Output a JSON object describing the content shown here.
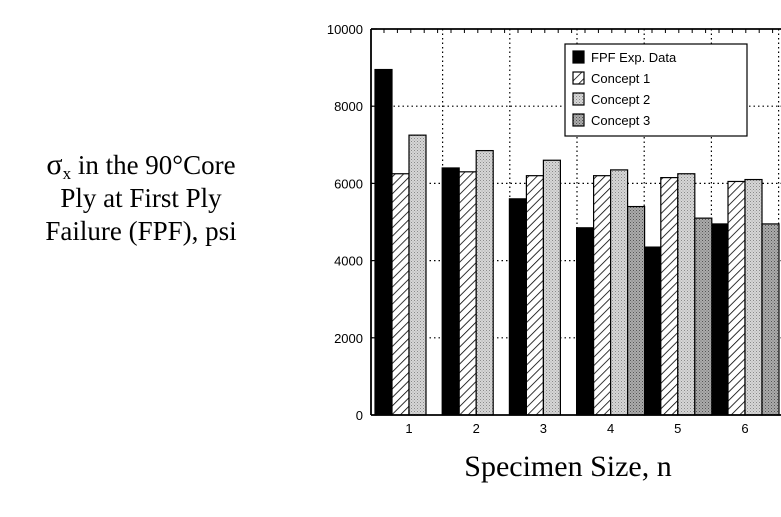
{
  "chart_data": {
    "type": "bar",
    "title": "",
    "ylabel": {
      "symbol": "σ",
      "subscript": "x",
      "line1_rest": " in the 90°Core",
      "line2": "Ply at First Ply",
      "line3": "Failure (FPF), psi"
    },
    "xlabel": "Specimen Size, n",
    "ylim": [
      0,
      10000
    ],
    "yticks": [
      "0",
      "2000",
      "4000",
      "6000",
      "8000",
      "10000"
    ],
    "categories": [
      "1",
      "2",
      "3",
      "4",
      "5",
      "6"
    ],
    "grid": true,
    "legend_position": "top-right",
    "series": [
      {
        "name": "FPF Exp. Data",
        "pattern": "solid-black",
        "values": [
          8950,
          6400,
          5600,
          4850,
          4350,
          4950
        ]
      },
      {
        "name": "Concept 1",
        "pattern": "white-hatched",
        "values": [
          6250,
          6300,
          6200,
          6200,
          6150,
          6050
        ]
      },
      {
        "name": "Concept 2",
        "pattern": "light-gray-stipple",
        "values": [
          7250,
          6850,
          6600,
          6350,
          6250,
          6100
        ]
      },
      {
        "name": "Concept 3",
        "pattern": "dark-gray-stipple",
        "values": [
          null,
          null,
          null,
          5400,
          5100,
          4950
        ]
      }
    ],
    "colors": {
      "solid": "#000000",
      "light_gray": "#cfcfcf",
      "dark_gray": "#a9a9a9"
    }
  }
}
